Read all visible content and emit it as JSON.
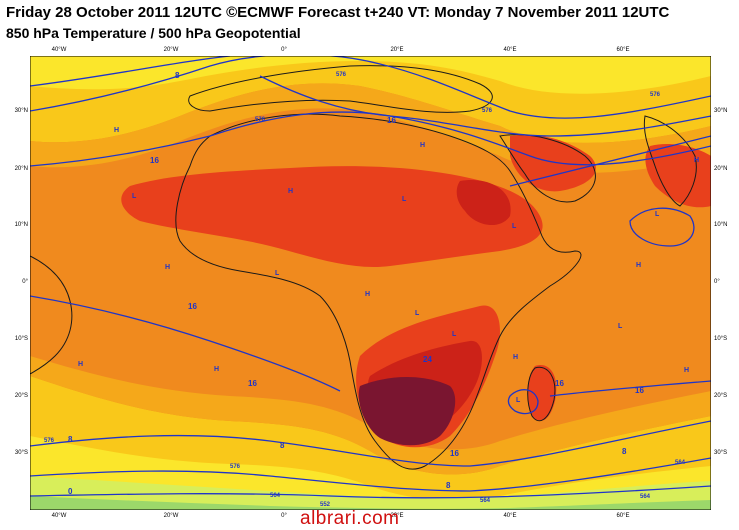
{
  "header": {
    "title_line1": "Friday 28 October 2011 12UTC ©ECMWF Forecast t+240 VT: Monday 7 November 2011 12UTC",
    "title_line2": "850 hPa Temperature / 500 hPa Geopotential"
  },
  "map": {
    "lat_labels": [
      "30°N",
      "20°N",
      "10°N",
      "0°",
      "10°S",
      "20°S",
      "30°S"
    ],
    "lon_labels": [
      "40°W",
      "20°W",
      "0°",
      "20°E",
      "40°E",
      "60°E"
    ],
    "temperature_labels": [
      "8",
      "16",
      "16",
      "16",
      "16",
      "16",
      "24",
      "16",
      "8",
      "8",
      "0",
      "8",
      "16",
      "8"
    ],
    "geopotential_labels": [
      "576",
      "576",
      "576",
      "576",
      "576",
      "564",
      "576",
      "564",
      "552",
      "564",
      "564"
    ],
    "pressure_centers": [
      "H",
      "H",
      "H",
      "H",
      "H",
      "H",
      "H",
      "H",
      "H",
      "H",
      "H",
      "L",
      "L",
      "L",
      "L",
      "L",
      "L",
      "L",
      "L",
      "L"
    ],
    "colors": {
      "ocean": "#f08a1e",
      "warm_band": "#f26b1a",
      "hot": "#e8401c",
      "very_hot": "#cc2218",
      "extreme": "#7a1530",
      "cool_band": "#f9c81a",
      "cooler_band": "#fbe62b",
      "coast": "#1a1a1a",
      "contour": "#2035c8"
    }
  },
  "watermark": "albrari.com"
}
